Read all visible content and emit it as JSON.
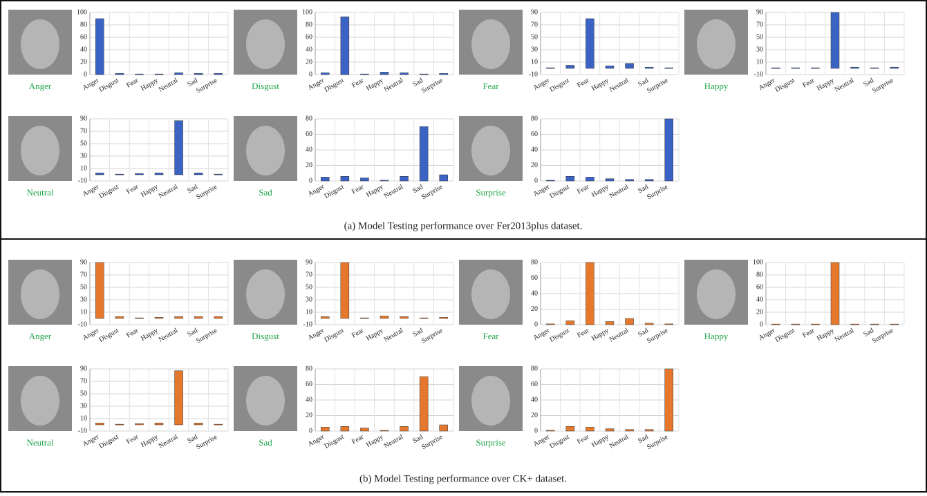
{
  "chart_data": [
    {
      "type": "bar",
      "image_label": "Anger",
      "categories": [
        "Anger",
        "Disgust",
        "Fear",
        "Happy",
        "Neutral",
        "Sad",
        "Surprise"
      ],
      "values": [
        90,
        2,
        1,
        1,
        3,
        2,
        2
      ],
      "color": "#3b63c4",
      "ylim": [
        0,
        100
      ],
      "yticks": [
        0,
        20,
        40,
        60,
        80,
        100
      ],
      "grid": true
    },
    {
      "type": "bar",
      "image_label": "Disgust",
      "categories": [
        "Anger",
        "Disgust",
        "Fear",
        "Happy",
        "Neutral",
        "Sad",
        "Surprise"
      ],
      "values": [
        3,
        93,
        1,
        4,
        3,
        1,
        2
      ],
      "color": "#3b63c4",
      "ylim": [
        0,
        100
      ],
      "yticks": [
        0,
        20,
        40,
        60,
        80,
        100
      ],
      "grid": true
    },
    {
      "type": "bar",
      "image_label": "Fear",
      "categories": [
        "Anger",
        "Disgust",
        "Fear",
        "Happy",
        "Neutral",
        "Sad",
        "Surprise"
      ],
      "values": [
        1,
        5,
        80,
        4,
        8,
        2,
        1
      ],
      "color": "#3b63c4",
      "ylim": [
        -10,
        90
      ],
      "yticks": [
        -10,
        10,
        30,
        50,
        70,
        90
      ],
      "grid": true
    },
    {
      "type": "bar",
      "image_label": "Happy",
      "categories": [
        "Anger",
        "Disgust",
        "Fear",
        "Happy",
        "Neutral",
        "Sad",
        "Surprise"
      ],
      "values": [
        1,
        1,
        1,
        90,
        2,
        1,
        2
      ],
      "color": "#3b63c4",
      "ylim": [
        -10,
        90
      ],
      "yticks": [
        -10,
        10,
        30,
        50,
        70,
        90
      ],
      "grid": true
    },
    {
      "type": "bar",
      "image_label": "Neutral",
      "categories": [
        "Anger",
        "Disgust",
        "Fear",
        "Happy",
        "Neutral",
        "Sad",
        "Surprise"
      ],
      "values": [
        3,
        1,
        2,
        3,
        87,
        3,
        1
      ],
      "color": "#3b63c4",
      "ylim": [
        -10,
        90
      ],
      "yticks": [
        -10,
        10,
        30,
        50,
        70,
        90
      ],
      "grid": true
    },
    {
      "type": "bar",
      "image_label": "Sad",
      "categories": [
        "Anger",
        "Disgust",
        "Fear",
        "Happy",
        "Neutral",
        "Sad",
        "Surprise"
      ],
      "values": [
        5,
        6,
        4,
        1,
        6,
        70,
        8
      ],
      "color": "#3b63c4",
      "ylim": [
        0,
        80
      ],
      "yticks": [
        0,
        20,
        40,
        60,
        80
      ],
      "grid": true
    },
    {
      "type": "bar",
      "image_label": "Surprise",
      "categories": [
        "Anger",
        "Disgust",
        "Fear",
        "Happy",
        "Neutral",
        "Sad",
        "Surprise"
      ],
      "values": [
        1,
        6,
        5,
        3,
        2,
        2,
        80
      ],
      "color": "#3b63c4",
      "ylim": [
        0,
        80
      ],
      "yticks": [
        0,
        20,
        40,
        60,
        80
      ],
      "grid": true
    },
    {
      "type": "bar",
      "image_label": "Anger",
      "categories": [
        "Anger",
        "Disgust",
        "Fear",
        "Happy",
        "Neutral",
        "Sad",
        "Surprise"
      ],
      "values": [
        90,
        3,
        1,
        2,
        3,
        3,
        3
      ],
      "color": "#e6782e",
      "ylim": [
        -10,
        90
      ],
      "yticks": [
        -10,
        10,
        30,
        50,
        70,
        90
      ],
      "grid": true
    },
    {
      "type": "bar",
      "image_label": "Disgust",
      "categories": [
        "Anger",
        "Disgust",
        "Fear",
        "Happy",
        "Neutral",
        "Sad",
        "Surprise"
      ],
      "values": [
        3,
        90,
        1,
        4,
        3,
        1,
        2
      ],
      "color": "#e6782e",
      "ylim": [
        -10,
        90
      ],
      "yticks": [
        -10,
        10,
        30,
        50,
        70,
        90
      ],
      "grid": true
    },
    {
      "type": "bar",
      "image_label": "Fear",
      "categories": [
        "Anger",
        "Disgust",
        "Fear",
        "Happy",
        "Neutral",
        "Sad",
        "Surprise"
      ],
      "values": [
        1,
        5,
        80,
        4,
        8,
        2,
        1
      ],
      "color": "#e6782e",
      "ylim": [
        0,
        80
      ],
      "yticks": [
        0,
        20,
        40,
        60,
        80
      ],
      "grid": true
    },
    {
      "type": "bar",
      "image_label": "Happy",
      "categories": [
        "Anger",
        "Disgust",
        "Fear",
        "Happy",
        "Neutral",
        "Sad",
        "Surprise"
      ],
      "values": [
        1,
        1,
        1,
        100,
        1,
        1,
        1
      ],
      "color": "#e6782e",
      "ylim": [
        0,
        100
      ],
      "yticks": [
        0,
        20,
        40,
        60,
        80,
        100
      ],
      "grid": true
    },
    {
      "type": "bar",
      "image_label": "Neutral",
      "categories": [
        "Anger",
        "Disgust",
        "Fear",
        "Happy",
        "Neutral",
        "Sad",
        "Surprise"
      ],
      "values": [
        3,
        1,
        2,
        3,
        87,
        3,
        1
      ],
      "color": "#e6782e",
      "ylim": [
        -10,
        90
      ],
      "yticks": [
        -10,
        10,
        30,
        50,
        70,
        90
      ],
      "grid": true
    },
    {
      "type": "bar",
      "image_label": "Sad",
      "categories": [
        "Anger",
        "Disgust",
        "Fear",
        "Happy",
        "Neutral",
        "Sad",
        "Surprise"
      ],
      "values": [
        5,
        6,
        4,
        1,
        6,
        70,
        8
      ],
      "color": "#e6782e",
      "ylim": [
        0,
        80
      ],
      "yticks": [
        0,
        20,
        40,
        60,
        80
      ],
      "grid": true
    },
    {
      "type": "bar",
      "image_label": "Surprise",
      "categories": [
        "Anger",
        "Disgust",
        "Fear",
        "Happy",
        "Neutral",
        "Sad",
        "Surprise"
      ],
      "values": [
        1,
        6,
        5,
        3,
        2,
        2,
        80
      ],
      "color": "#e6782e",
      "ylim": [
        0,
        80
      ],
      "yticks": [
        0,
        20,
        40,
        60,
        80
      ],
      "grid": true
    }
  ],
  "captions": [
    "(a) Model Testing performance over Fer2013plus dataset.",
    "(b) Model Testing performance over CK+ dataset."
  ]
}
